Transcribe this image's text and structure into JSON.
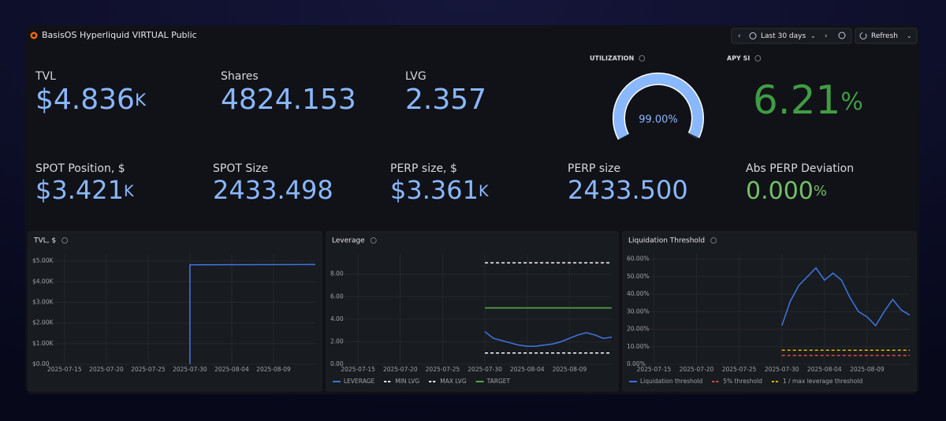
{
  "header": {
    "title": "BasisOS Hyperliquid VIRTUAL Public",
    "time_range": "Last 30 days",
    "refresh": "Refresh"
  },
  "stats": [
    {
      "label": "TVL",
      "value": "$4.836",
      "unit": "K",
      "color": "#8ab8ff"
    },
    {
      "label": "Shares",
      "value": "4824.153",
      "color": "#8ab8ff"
    },
    {
      "label": "LVG",
      "value": "2.357",
      "color": "#8ab8ff"
    },
    {
      "label": "SPOT Position, $",
      "value": "$3.421",
      "unit": "K",
      "color": "#8ab8ff"
    },
    {
      "label": "SPOT Size",
      "value": "2433.498",
      "color": "#8ab8ff"
    },
    {
      "label": "PERP size, $",
      "value": "$3.361",
      "unit": "K",
      "color": "#8ab8ff"
    },
    {
      "label": "PERP size",
      "value": "2433.500",
      "color": "#8ab8ff"
    },
    {
      "label": "APY SI",
      "value": "6.21",
      "unit": "%",
      "color": "#3f9d43"
    },
    {
      "label": "Abs PERP Deviation",
      "value": "0.000",
      "unit": "%",
      "color": "#73bf69"
    }
  ],
  "chart_data": [
    {
      "type": "gauge",
      "title": "UTILIZATION",
      "values": [
        99
      ],
      "value_labels": [
        "99.00%"
      ],
      "ylim": [
        0,
        100
      ],
      "color": "#8ab8ff"
    },
    {
      "type": "line",
      "title": "TVL, $",
      "xlim": [
        "2025-07-12",
        "2025-08-14"
      ],
      "xticks": [
        "2025-07-15",
        "2025-07-20",
        "2025-07-25",
        "2025-07-30",
        "2025-08-04",
        "2025-08-09"
      ],
      "ylim": [
        0,
        5350
      ],
      "yticks": [
        {
          "value": 0,
          "label": "$0.00"
        },
        {
          "value": 1000,
          "label": "$1.00K"
        },
        {
          "value": 2000,
          "label": "$2.00K"
        },
        {
          "value": 3000,
          "label": "$3.00K"
        },
        {
          "value": 4000,
          "label": "$4.00K"
        },
        {
          "value": 5000,
          "label": "$5.00K"
        }
      ],
      "grid": true,
      "series": [
        {
          "color": "#3d71d9",
          "x": [
            "2025-07-30",
            "2025-07-30",
            "2025-08-14"
          ],
          "values": [
            0,
            4820,
            4836
          ]
        }
      ]
    },
    {
      "type": "line",
      "title": "Leverage",
      "xlim": [
        "2025-07-12",
        "2025-08-14"
      ],
      "xticks": [
        "2025-07-15",
        "2025-07-20",
        "2025-07-25",
        "2025-07-30",
        "2025-08-04",
        "2025-08-09"
      ],
      "ylim": [
        0,
        9.8
      ],
      "yticks": [
        {
          "value": 0,
          "label": "0.00"
        },
        {
          "value": 2,
          "label": "2.00"
        },
        {
          "value": 4,
          "label": "4.00"
        },
        {
          "value": 6,
          "label": "6.00"
        },
        {
          "value": 8,
          "label": "8.00"
        }
      ],
      "grid": true,
      "series": [
        {
          "name": "LEVERAGE",
          "color": "#3d71d9",
          "x": [
            "2025-07-30",
            "2025-07-31",
            "2025-08-01",
            "2025-08-02",
            "2025-08-03",
            "2025-08-04",
            "2025-08-05",
            "2025-08-06",
            "2025-08-07",
            "2025-08-08",
            "2025-08-09",
            "2025-08-10",
            "2025-08-11",
            "2025-08-12",
            "2025-08-13",
            "2025-08-14"
          ],
          "values": [
            2.9,
            2.3,
            2.1,
            1.9,
            1.7,
            1.6,
            1.6,
            1.7,
            1.8,
            2.0,
            2.3,
            2.6,
            2.8,
            2.6,
            2.3,
            2.4
          ]
        },
        {
          "name": "MIN LVG",
          "color": "#ffffff",
          "style": "dashed",
          "x": [
            "2025-07-30",
            "2025-08-14"
          ],
          "values": [
            1,
            1
          ]
        },
        {
          "name": "MAX LVG",
          "color": "#ffffff",
          "style": "dashed",
          "x": [
            "2025-07-30",
            "2025-08-14"
          ],
          "values": [
            9,
            9
          ]
        },
        {
          "name": "TARGET",
          "color": "#56a64b",
          "x": [
            "2025-07-30",
            "2025-08-14"
          ],
          "values": [
            5,
            5
          ]
        }
      ]
    },
    {
      "type": "line",
      "title": "Liquidation Threshold",
      "xlim": [
        "2025-07-12",
        "2025-08-14"
      ],
      "xticks": [
        "2025-07-15",
        "2025-07-20",
        "2025-07-25",
        "2025-07-30",
        "2025-08-04",
        "2025-08-09"
      ],
      "ylim": [
        0,
        63
      ],
      "yticks": [
        {
          "value": 0,
          "label": "0.00%"
        },
        {
          "value": 10,
          "label": "10.00%"
        },
        {
          "value": 20,
          "label": "20.00%"
        },
        {
          "value": 30,
          "label": "30.00%"
        },
        {
          "value": 40,
          "label": "40.00%"
        },
        {
          "value": 50,
          "label": "50.00%"
        },
        {
          "value": 60,
          "label": "60.00%"
        }
      ],
      "grid": true,
      "series": [
        {
          "name": "Liquidation threshold",
          "color": "#3d71d9",
          "x": [
            "2025-07-30",
            "2025-07-31",
            "2025-08-01",
            "2025-08-02",
            "2025-08-03",
            "2025-08-04",
            "2025-08-05",
            "2025-08-06",
            "2025-08-07",
            "2025-08-08",
            "2025-08-09",
            "2025-08-10",
            "2025-08-11",
            "2025-08-12",
            "2025-08-13",
            "2025-08-14"
          ],
          "values": [
            22,
            36,
            45,
            50,
            55,
            48,
            52,
            48,
            38,
            30,
            27,
            22,
            30,
            37,
            31,
            28
          ]
        },
        {
          "name": "5% threshold",
          "color": "#e24d42",
          "style": "dashed",
          "x": [
            "2025-07-30",
            "2025-08-14"
          ],
          "values": [
            5,
            5
          ]
        },
        {
          "name": "1 / max leverage threshold",
          "color": "#e0b400",
          "style": "dashed",
          "x": [
            "2025-07-30",
            "2025-08-14"
          ],
          "values": [
            8,
            8
          ]
        }
      ]
    }
  ]
}
